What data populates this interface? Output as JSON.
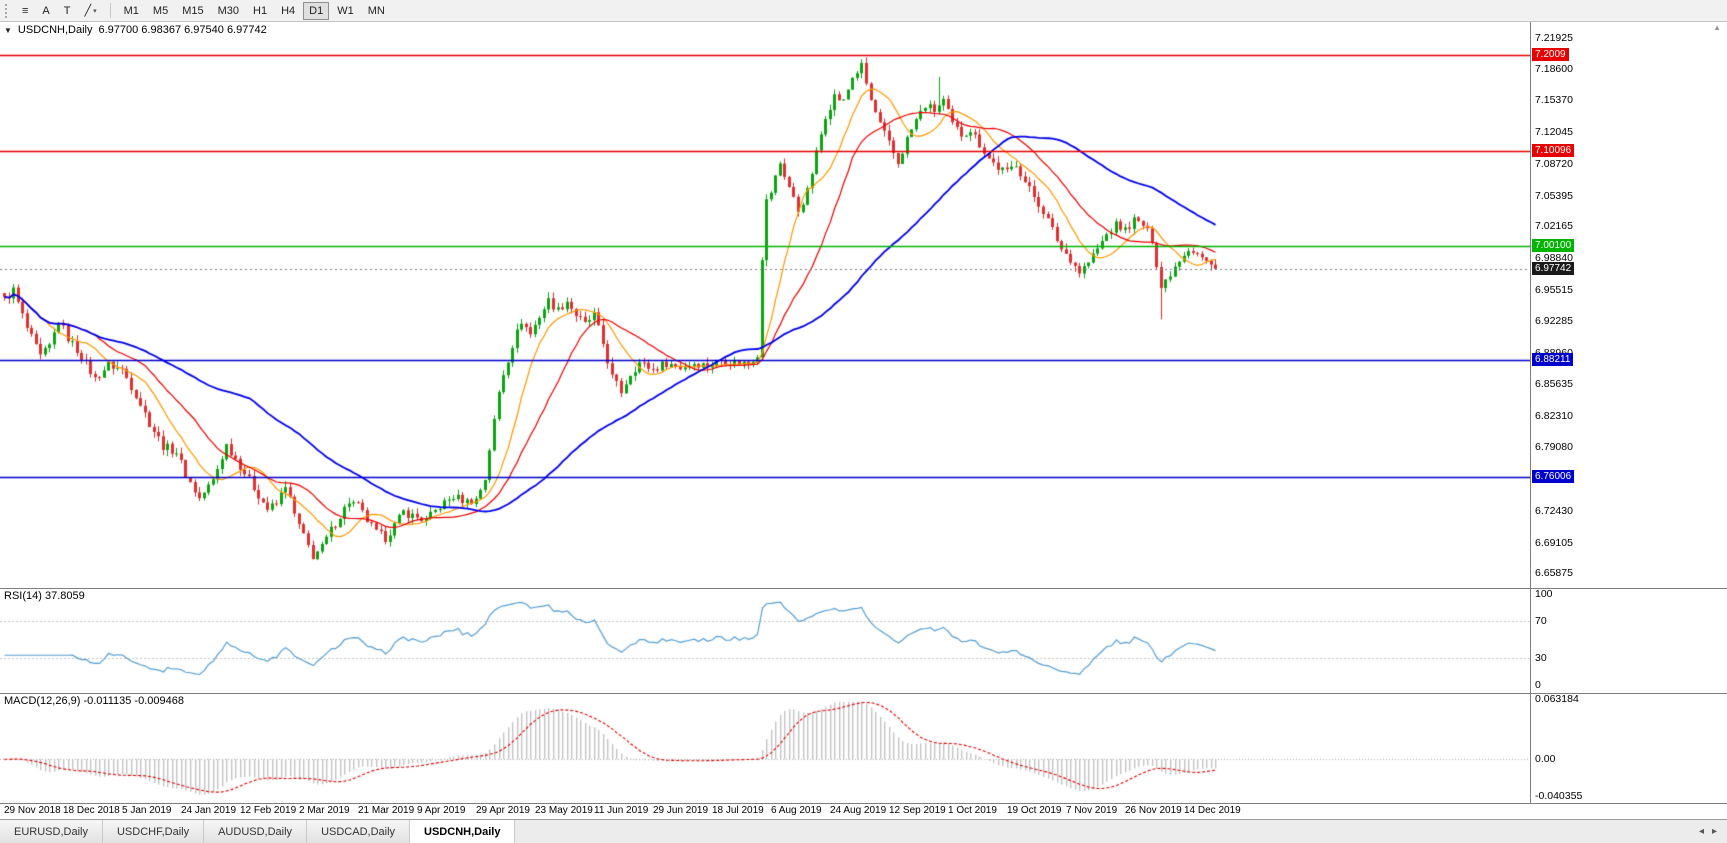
{
  "toolbar": {
    "tools": [
      {
        "name": "objects-list",
        "glyph": "≡"
      },
      {
        "name": "arrow-style",
        "glyph": "A"
      },
      {
        "name": "text-label",
        "glyph": "T"
      },
      {
        "name": "trendline",
        "glyph": "╱",
        "caret": "▾"
      }
    ],
    "timeframes": [
      "M1",
      "M5",
      "M15",
      "M30",
      "H1",
      "H4",
      "D1",
      "W1",
      "MN"
    ],
    "active_timeframe": "D1"
  },
  "chart": {
    "collapse_icon": "▼",
    "symbol_label": "USDCNH,Daily",
    "ohlc": "6.97700 6.98367 6.97540 6.97742",
    "price_axis": [
      "7.21925",
      "7.18600",
      "7.15370",
      "7.12045",
      "7.08720",
      "7.05395",
      "7.02165",
      "6.98840",
      "6.95515",
      "6.92285",
      "6.88960",
      "6.85635",
      "6.82310",
      "6.79080",
      "6.75755",
      "6.72430",
      "6.69105",
      "6.65875"
    ],
    "hlines": [
      {
        "value": 7.2009,
        "label": "7.2009",
        "color": "#e60000"
      },
      {
        "value": 7.10096,
        "label": "7.10096",
        "color": "#e60000"
      },
      {
        "value": 7.001,
        "label": "7.00100",
        "color": "#00b400"
      },
      {
        "value": 6.88211,
        "label": "6.88211",
        "color": "#0000cc"
      },
      {
        "value": 6.76006,
        "label": "6.76006",
        "color": "#0000cc"
      }
    ],
    "current_price": {
      "value": 6.97742,
      "label": "6.97742",
      "badge_color": "#1a1a1a"
    },
    "scroll_marker": "▲"
  },
  "rsi": {
    "label": "RSI(14) 37.8059",
    "value": 37.8059,
    "line_color": "#569fd6",
    "levels": [
      {
        "value": 100,
        "label": "100"
      },
      {
        "value": 70,
        "label": "70"
      },
      {
        "value": 30,
        "label": "30"
      },
      {
        "value": 0,
        "label": "0"
      }
    ]
  },
  "macd": {
    "label": "MACD(12,26,9) -0.011135 -0.009468",
    "macd_value": -0.011135,
    "signal_value": -0.009468,
    "histogram_color": "#c4c4c4",
    "signal_color": "#e60000",
    "axis": [
      {
        "value": 0.063184,
        "label": "0.063184"
      },
      {
        "value": 0,
        "label": "0.00"
      },
      {
        "value": -0.040355,
        "label": "-0.040355"
      }
    ]
  },
  "date_axis": [
    "29 Nov 2018",
    "18 Dec 2018",
    "5 Jan 2019",
    "24 Jan 2019",
    "12 Feb 2019",
    "2 Mar 2019",
    "21 Mar 2019",
    "9 Apr 2019",
    "29 Apr 2019",
    "23 May 2019",
    "11 Jun 2019",
    "29 Jun 2019",
    "18 Jul 2019",
    "6 Aug 2019",
    "24 Aug 2019",
    "12 Sep 2019",
    "1 Oct 2019",
    "19 Oct 2019",
    "7 Nov 2019",
    "26 Nov 2019",
    "14 Dec 2019"
  ],
  "tabs": [
    {
      "label": "EURUSD,Daily",
      "active": false
    },
    {
      "label": "USDCHF,Daily",
      "active": false
    },
    {
      "label": "AUDUSD,Daily",
      "active": false
    },
    {
      "label": "USDCAD,Daily",
      "active": false
    },
    {
      "label": "USDCNH,Daily",
      "active": true
    }
  ],
  "tabs_nav": {
    "left": "◂",
    "right": "▸"
  },
  "chart_data": {
    "type": "candlestick",
    "symbol": "USDCNH",
    "period": "Daily",
    "visible_bars": 268,
    "price_range": [
      6.6435,
      7.2355
    ],
    "candle_up_color": "#0da312",
    "candle_down_color": "#e03030",
    "moving_averages": [
      {
        "period": 10,
        "color": "#ff9900"
      },
      {
        "period": 21,
        "color": "#ee0000"
      },
      {
        "period": 55,
        "color": "#0000ee"
      }
    ],
    "anchors": [
      [
        0,
        6.945
      ],
      [
        2,
        6.955
      ],
      [
        5,
        6.915
      ],
      [
        8,
        6.885
      ],
      [
        10,
        6.896
      ],
      [
        12,
        6.923
      ],
      [
        14,
        6.905
      ],
      [
        17,
        6.886
      ],
      [
        20,
        6.862
      ],
      [
        23,
        6.877
      ],
      [
        26,
        6.872
      ],
      [
        29,
        6.846
      ],
      [
        32,
        6.816
      ],
      [
        35,
        6.792
      ],
      [
        38,
        6.786
      ],
      [
        40,
        6.762
      ],
      [
        43,
        6.737
      ],
      [
        46,
        6.756
      ],
      [
        49,
        6.793
      ],
      [
        51,
        6.779
      ],
      [
        53,
        6.764
      ],
      [
        56,
        6.741
      ],
      [
        58,
        6.726
      ],
      [
        60,
        6.731
      ],
      [
        62,
        6.752
      ],
      [
        64,
        6.72
      ],
      [
        66,
        6.697
      ],
      [
        68,
        6.677
      ],
      [
        70,
        6.686
      ],
      [
        72,
        6.704
      ],
      [
        74,
        6.719
      ],
      [
        76,
        6.734
      ],
      [
        78,
        6.729
      ],
      [
        80,
        6.714
      ],
      [
        82,
        6.701
      ],
      [
        84,
        6.696
      ],
      [
        86,
        6.709
      ],
      [
        88,
        6.723
      ],
      [
        90,
        6.719
      ],
      [
        93,
        6.714
      ],
      [
        96,
        6.729
      ],
      [
        99,
        6.739
      ],
      [
        102,
        6.734
      ],
      [
        104,
        6.736
      ],
      [
        106,
        6.758
      ],
      [
        107,
        6.789
      ],
      [
        108,
        6.818
      ],
      [
        109,
        6.848
      ],
      [
        110,
        6.868
      ],
      [
        112,
        6.898
      ],
      [
        114,
        6.923
      ],
      [
        116,
        6.909
      ],
      [
        118,
        6.928
      ],
      [
        120,
        6.944
      ],
      [
        122,
        6.934
      ],
      [
        124,
        6.944
      ],
      [
        126,
        6.929
      ],
      [
        128,
        6.919
      ],
      [
        130,
        6.929
      ],
      [
        132,
        6.899
      ],
      [
        134,
        6.864
      ],
      [
        136,
        6.849
      ],
      [
        138,
        6.868
      ],
      [
        140,
        6.879
      ],
      [
        143,
        6.872
      ],
      [
        146,
        6.879
      ],
      [
        149,
        6.874
      ],
      [
        152,
        6.879
      ],
      [
        155,
        6.876
      ],
      [
        158,
        6.882
      ],
      [
        161,
        6.879
      ],
      [
        164,
        6.879
      ],
      [
        166,
        6.888
      ],
      [
        167,
        6.99
      ],
      [
        168,
        7.048
      ],
      [
        169,
        7.058
      ],
      [
        171,
        7.088
      ],
      [
        173,
        7.063
      ],
      [
        175,
        7.038
      ],
      [
        177,
        7.058
      ],
      [
        179,
        7.098
      ],
      [
        181,
        7.138
      ],
      [
        183,
        7.158
      ],
      [
        185,
        7.152
      ],
      [
        187,
        7.178
      ],
      [
        189,
        7.189
      ],
      [
        191,
        7.153
      ],
      [
        193,
        7.128
      ],
      [
        195,
        7.108
      ],
      [
        197,
        7.088
      ],
      [
        199,
        7.113
      ],
      [
        201,
        7.133
      ],
      [
        203,
        7.148
      ],
      [
        205,
        7.143
      ],
      [
        207,
        7.153
      ],
      [
        209,
        7.128
      ],
      [
        211,
        7.118
      ],
      [
        213,
        7.123
      ],
      [
        215,
        7.108
      ],
      [
        217,
        7.093
      ],
      [
        219,
        7.083
      ],
      [
        221,
        7.078
      ],
      [
        223,
        7.088
      ],
      [
        225,
        7.068
      ],
      [
        227,
        7.053
      ],
      [
        229,
        7.038
      ],
      [
        231,
        7.018
      ],
      [
        233,
        6.998
      ],
      [
        235,
        6.988
      ],
      [
        237,
        6.974
      ],
      [
        239,
        6.984
      ],
      [
        241,
        6.998
      ],
      [
        243,
        7.013
      ],
      [
        245,
        7.023
      ],
      [
        247,
        7.018
      ],
      [
        249,
        7.028
      ],
      [
        251,
        7.023
      ],
      [
        253,
        7.008
      ],
      [
        255,
        6.958
      ],
      [
        257,
        6.973
      ],
      [
        259,
        6.988
      ],
      [
        261,
        6.999
      ],
      [
        263,
        6.993
      ],
      [
        265,
        6.984
      ],
      [
        267,
        6.97742
      ]
    ],
    "wick_overrides": {
      "167": {
        "low": 6.885
      },
      "189": {
        "high": 7.1965
      },
      "206": {
        "high": 7.178
      },
      "255": {
        "low": 6.9245
      }
    },
    "indicators": [
      {
        "name": "RSI",
        "period": 14,
        "value": 37.8059
      },
      {
        "name": "MACD",
        "fast": 12,
        "slow": 26,
        "signal": 9,
        "macd_value": -0.011135,
        "signal_value": -0.009468
      }
    ]
  }
}
